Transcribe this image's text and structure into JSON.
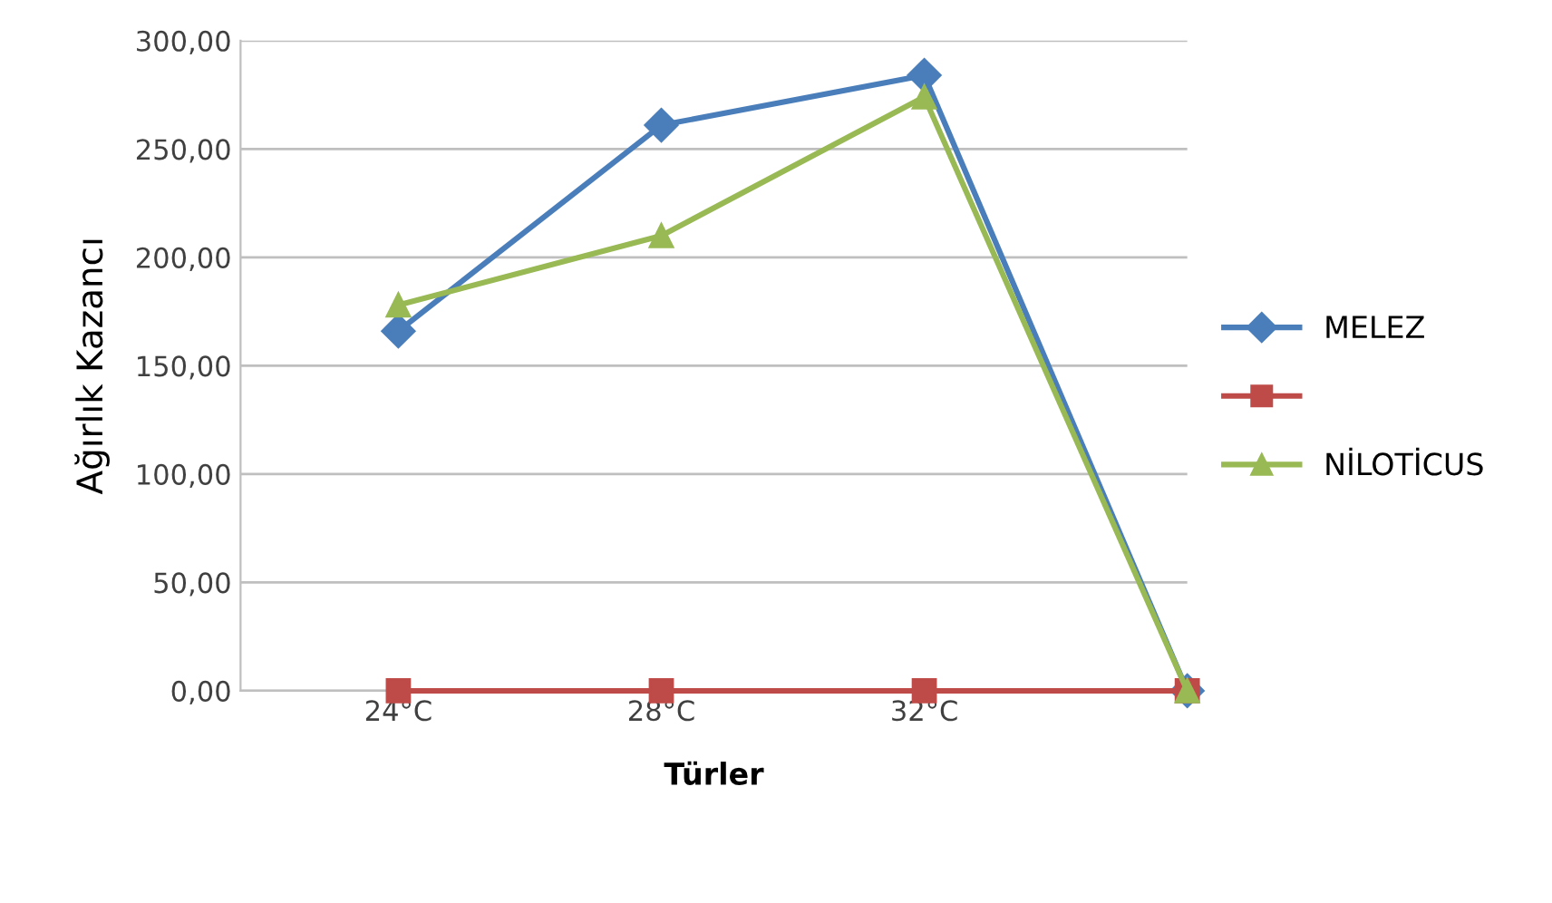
{
  "chart_data": {
    "type": "line",
    "xlabel": "Türler",
    "ylabel": "Ağırlık Kazancı",
    "categories": [
      "24°C",
      "28°C",
      "32°C",
      null
    ],
    "series": [
      {
        "name": "MELEZ",
        "color": "#4a7ebb",
        "marker": "diamond",
        "values": [
          166,
          261,
          284,
          0
        ]
      },
      {
        "color": "#be4b48",
        "marker": "square",
        "values": [
          0,
          0,
          0,
          0
        ]
      },
      {
        "name": "NİLOTİCUS",
        "color": "#98b954",
        "marker": "triangle",
        "values": [
          178,
          210,
          274,
          0
        ]
      }
    ],
    "ylim": [
      0,
      300
    ],
    "yticks": [
      {
        "value": 0,
        "label": "0,00"
      },
      {
        "value": 50,
        "label": "50,00"
      },
      {
        "value": 100,
        "label": "100,00"
      },
      {
        "value": 150,
        "label": "150,00"
      },
      {
        "value": 200,
        "label": "200,00"
      },
      {
        "value": 250,
        "label": "250,00"
      },
      {
        "value": 300,
        "label": "300,00"
      }
    ],
    "grid": "y",
    "legend": "right"
  }
}
